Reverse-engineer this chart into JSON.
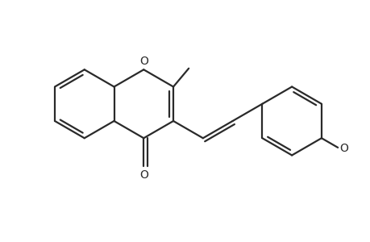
{
  "bg_color": "#ffffff",
  "line_color": "#2a2a2a",
  "line_width": 1.6,
  "figsize": [
    4.6,
    3.0
  ],
  "dpi": 100,
  "xlim": [
    0.0,
    9.5
  ],
  "ylim": [
    -0.5,
    6.5
  ]
}
